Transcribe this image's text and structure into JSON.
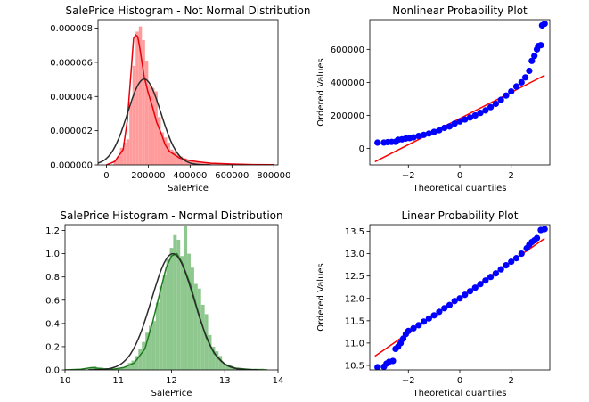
{
  "chart_data": [
    {
      "type": "histogram",
      "title": "SalePrice Histogram - Not Normal Distribution",
      "xlabel": "SalePrice",
      "ylabel": "",
      "xlim": [
        -40000,
        820000
      ],
      "ylim": [
        0,
        8.5e-06
      ],
      "xticks": [
        0,
        200000,
        400000,
        600000,
        800000
      ],
      "xtick_labels": [
        "0",
        "200000",
        "400000",
        "600000",
        "800000"
      ],
      "yticks": [
        0,
        2e-06,
        4e-06,
        6e-06,
        8e-06
      ],
      "ytick_labels": [
        "0.000000",
        "0.000002",
        "0.000004",
        "0.000006",
        "0.000008"
      ],
      "bar_color": "#ff9b9b",
      "kde_color": "#e8000b",
      "fit_color": "#2b2b2b",
      "bins": {
        "start": 34900,
        "width": 15000,
        "values": [
          3e-07,
          5e-07,
          1e-06,
          1.3e-06,
          1.5e-06,
          3.7e-06,
          5.8e-06,
          7.8e-06,
          8.1e-06,
          7.3e-06,
          6.1e-06,
          4.7e-06,
          4.5e-06,
          4.3e-06,
          2.8e-06,
          1.9e-06,
          1.6e-06,
          1.3e-06,
          9e-07,
          8e-07,
          6e-07,
          5e-07,
          4e-07,
          3e-07,
          3e-07,
          2e-07,
          2e-07,
          2e-07,
          1e-07,
          1e-07,
          1e-07,
          1e-07,
          6e-08,
          5e-08,
          4e-08,
          3e-08,
          2e-08,
          2e-08,
          1e-08,
          1e-08,
          1e-08,
          1e-08,
          1e-08,
          1e-08,
          1e-08,
          1e-08,
          1e-08,
          1e-08,
          1e-08,
          1e-08
        ]
      },
      "kde_points": [
        [
          0,
          0
        ],
        [
          40000,
          2e-07
        ],
        [
          80000,
          9e-07
        ],
        [
          100000,
          2.6e-06
        ],
        [
          120000,
          5.8e-06
        ],
        [
          130000,
          7.4e-06
        ],
        [
          140000,
          7.6e-06
        ],
        [
          150000,
          7.5e-06
        ],
        [
          160000,
          6.8e-06
        ],
        [
          180000,
          5.2e-06
        ],
        [
          200000,
          4.2e-06
        ],
        [
          220000,
          3.4e-06
        ],
        [
          240000,
          2.5e-06
        ],
        [
          260000,
          1.9e-06
        ],
        [
          280000,
          1.2e-06
        ],
        [
          300000,
          8e-07
        ],
        [
          350000,
          4e-07
        ],
        [
          400000,
          2.5e-07
        ],
        [
          450000,
          1.6e-07
        ],
        [
          500000,
          1e-07
        ],
        [
          600000,
          5e-08
        ],
        [
          700000,
          2e-08
        ],
        [
          800000,
          1e-08
        ]
      ],
      "normal_fit": {
        "mean": 180921,
        "std": 79443
      }
    },
    {
      "type": "scatter",
      "title": "Nonlinear Probability Plot",
      "xlabel": "Theoretical quantiles",
      "ylabel": "Ordered Values",
      "xlim": [
        -3.5,
        3.5
      ],
      "ylim": [
        -100000,
        780000
      ],
      "xticks": [
        -2,
        0,
        2
      ],
      "xtick_labels": [
        "−2",
        "0",
        "2"
      ],
      "yticks": [
        0,
        200000,
        400000,
        600000
      ],
      "ytick_labels": [
        "0",
        "200000",
        "400000",
        "600000"
      ],
      "marker_color": "#0000ff",
      "line_color": "#ff0000",
      "points": [
        [
          -3.2,
          34900
        ],
        [
          -2.95,
          35311
        ],
        [
          -2.8,
          37900
        ],
        [
          -2.65,
          39300
        ],
        [
          -2.5,
          40000
        ],
        [
          -2.4,
          52000
        ],
        [
          -2.25,
          55000
        ],
        [
          -2.1,
          60000
        ],
        [
          -1.95,
          62383
        ],
        [
          -1.8,
          67000
        ],
        [
          -1.6,
          75000
        ],
        [
          -1.4,
          82000
        ],
        [
          -1.2,
          90000
        ],
        [
          -1.0,
          100000
        ],
        [
          -0.8,
          110000
        ],
        [
          -0.6,
          124000
        ],
        [
          -0.4,
          133000
        ],
        [
          -0.2,
          150000
        ],
        [
          0.0,
          163000
        ],
        [
          0.2,
          175000
        ],
        [
          0.4,
          187000
        ],
        [
          0.6,
          200000
        ],
        [
          0.8,
          215000
        ],
        [
          1.0,
          230000
        ],
        [
          1.2,
          250000
        ],
        [
          1.4,
          270000
        ],
        [
          1.6,
          294000
        ],
        [
          1.8,
          320000
        ],
        [
          2.0,
          345000
        ],
        [
          2.2,
          375000
        ],
        [
          2.4,
          400000
        ],
        [
          2.55,
          430000
        ],
        [
          2.7,
          470000
        ],
        [
          2.8,
          530000
        ],
        [
          2.9,
          560000
        ],
        [
          3.0,
          600000
        ],
        [
          3.05,
          620000
        ],
        [
          3.15,
          625000
        ],
        [
          3.2,
          745000
        ],
        [
          3.3,
          755000
        ]
      ],
      "fit_line": {
        "slope": 79300,
        "intercept": 180921,
        "x_range": [
          -3.3,
          3.3
        ]
      }
    },
    {
      "type": "histogram",
      "title": "SalePrice Histogram - Normal Distribution",
      "xlabel": "SalePrice",
      "ylabel": "",
      "xlim": [
        10,
        14
      ],
      "ylim": [
        0,
        1.25
      ],
      "xticks": [
        10,
        11,
        12,
        13,
        14
      ],
      "xtick_labels": [
        "10",
        "11",
        "12",
        "13",
        "14"
      ],
      "yticks": [
        0,
        0.2,
        0.4,
        0.6,
        0.8,
        1.0,
        1.2
      ],
      "ytick_labels": [
        "0.0",
        "0.2",
        "0.4",
        "0.6",
        "0.8",
        "1.0",
        "1.2"
      ],
      "bar_color": "#8fc88f",
      "kde_color": "#1e7a1e",
      "fit_color": "#2b2b2b",
      "bins": {
        "start": 10.46,
        "width": 0.0655,
        "values": [
          0.02,
          0.03,
          0.02,
          0.02,
          0.01,
          0.0,
          0.0,
          0.0,
          0.01,
          0.02,
          0.03,
          0.06,
          0.08,
          0.12,
          0.18,
          0.24,
          0.32,
          0.38,
          0.42,
          0.58,
          0.72,
          0.82,
          0.95,
          1.05,
          1.16,
          1.12,
          0.98,
          1.24,
          1.0,
          0.88,
          0.74,
          0.7,
          0.56,
          0.48,
          0.3,
          0.2,
          0.16,
          0.12,
          0.06,
          0.04,
          0.03,
          0.02,
          0.01,
          0.01,
          0.01,
          0.01,
          0.01,
          0.01,
          0.01,
          0.01
        ]
      },
      "kde_points": [
        [
          10.0,
          0.0
        ],
        [
          10.3,
          0.005
        ],
        [
          10.5,
          0.02
        ],
        [
          10.7,
          0.01
        ],
        [
          10.9,
          0.005
        ],
        [
          11.1,
          0.02
        ],
        [
          11.3,
          0.06
        ],
        [
          11.5,
          0.18
        ],
        [
          11.65,
          0.42
        ],
        [
          11.8,
          0.7
        ],
        [
          11.9,
          0.88
        ],
        [
          12.0,
          0.98
        ],
        [
          12.1,
          1.0
        ],
        [
          12.2,
          0.92
        ],
        [
          12.35,
          0.74
        ],
        [
          12.5,
          0.5
        ],
        [
          12.65,
          0.28
        ],
        [
          12.8,
          0.14
        ],
        [
          13.0,
          0.05
        ],
        [
          13.2,
          0.015
        ],
        [
          13.5,
          0.003
        ],
        [
          13.8,
          0.0
        ]
      ],
      "normal_fit": {
        "mean": 12.024,
        "std": 0.399
      }
    },
    {
      "type": "scatter",
      "title": "Linear Probability Plot",
      "xlabel": "Theoretical quantiles",
      "ylabel": "Ordered Values",
      "xlim": [
        -3.5,
        3.5
      ],
      "ylim": [
        10.4,
        13.65
      ],
      "xticks": [
        -2,
        0,
        2
      ],
      "xtick_labels": [
        "−2",
        "0",
        "2"
      ],
      "yticks": [
        10.5,
        11.0,
        11.5,
        12.0,
        12.5,
        13.0,
        13.5
      ],
      "ytick_labels": [
        "10.5",
        "11.0",
        "11.5",
        "12.0",
        "12.5",
        "13.0",
        "13.5"
      ],
      "marker_color": "#0000ff",
      "line_color": "#ff0000",
      "points": [
        [
          -3.2,
          10.46
        ],
        [
          -2.95,
          10.47
        ],
        [
          -2.85,
          10.54
        ],
        [
          -2.75,
          10.58
        ],
        [
          -2.6,
          10.6
        ],
        [
          -2.5,
          10.87
        ],
        [
          -2.4,
          10.92
        ],
        [
          -2.3,
          11.0
        ],
        [
          -2.2,
          11.1
        ],
        [
          -2.1,
          11.2
        ],
        [
          -2.0,
          11.27
        ],
        [
          -1.8,
          11.33
        ],
        [
          -1.6,
          11.4
        ],
        [
          -1.4,
          11.48
        ],
        [
          -1.2,
          11.55
        ],
        [
          -1.0,
          11.62
        ],
        [
          -0.8,
          11.7
        ],
        [
          -0.6,
          11.78
        ],
        [
          -0.4,
          11.85
        ],
        [
          -0.2,
          11.94
        ],
        [
          0.0,
          12.0
        ],
        [
          0.2,
          12.08
        ],
        [
          0.4,
          12.16
        ],
        [
          0.6,
          12.24
        ],
        [
          0.8,
          12.32
        ],
        [
          1.0,
          12.4
        ],
        [
          1.2,
          12.48
        ],
        [
          1.4,
          12.56
        ],
        [
          1.6,
          12.65
        ],
        [
          1.8,
          12.74
        ],
        [
          2.0,
          12.82
        ],
        [
          2.2,
          12.9
        ],
        [
          2.4,
          13.0
        ],
        [
          2.6,
          13.12
        ],
        [
          2.7,
          13.2
        ],
        [
          2.8,
          13.26
        ],
        [
          2.9,
          13.3
        ],
        [
          3.0,
          13.35
        ],
        [
          3.15,
          13.53
        ],
        [
          3.3,
          13.55
        ]
      ],
      "fit_line": {
        "slope": 0.399,
        "intercept": 12.024,
        "x_range": [
          -3.3,
          3.3
        ]
      }
    }
  ]
}
